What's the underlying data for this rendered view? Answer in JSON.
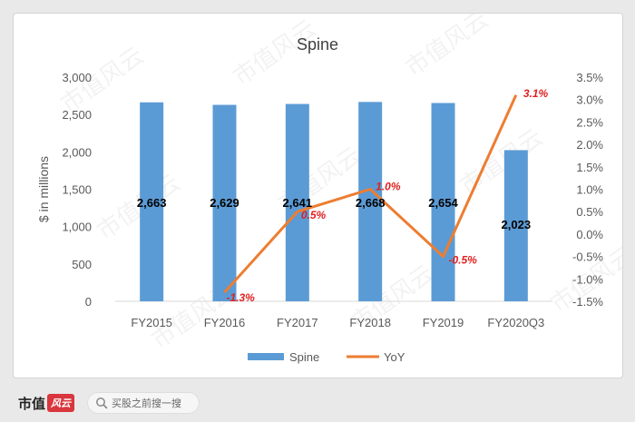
{
  "chart_data": {
    "type": "bar+line",
    "title": "Spine",
    "categories": [
      "FY2015",
      "FY2016",
      "FY2017",
      "FY2018",
      "FY2019",
      "FY2020Q3"
    ],
    "bar_series": {
      "name": "Spine",
      "values": [
        2663,
        2629,
        2641,
        2668,
        2654,
        2023
      ],
      "labels": [
        "2,663",
        "2,629",
        "2,641",
        "2,668",
        "2,654",
        "2,023"
      ],
      "color": "#5b9bd5"
    },
    "line_series": {
      "name": "YoY",
      "values": [
        null,
        -1.3,
        0.5,
        1.0,
        -0.5,
        3.1
      ],
      "labels": [
        "",
        "-1.3%",
        "0.5%",
        "1.0%",
        "-0.5%",
        "3.1%"
      ],
      "color": "#ed7d31",
      "label_color": "#e02020"
    },
    "ylabel": "$ in millions",
    "ylim": [
      0,
      3000
    ],
    "y_ticks": [
      "0",
      "500",
      "1,000",
      "1,500",
      "2,000",
      "2,500",
      "3,000"
    ],
    "y2lim": [
      -1.5,
      3.5
    ],
    "y2_ticks": [
      "-1.5%",
      "-1.0%",
      "-0.5%",
      "0.0%",
      "0.5%",
      "1.0%",
      "1.5%",
      "2.0%",
      "2.5%",
      "3.0%",
      "3.5%"
    ],
    "grid": false,
    "legend": "bottom"
  },
  "watermark": "市值风云",
  "footer": {
    "brand": "市值",
    "brand_mark": "风云",
    "search_placeholder": "买股之前搜一搜"
  }
}
